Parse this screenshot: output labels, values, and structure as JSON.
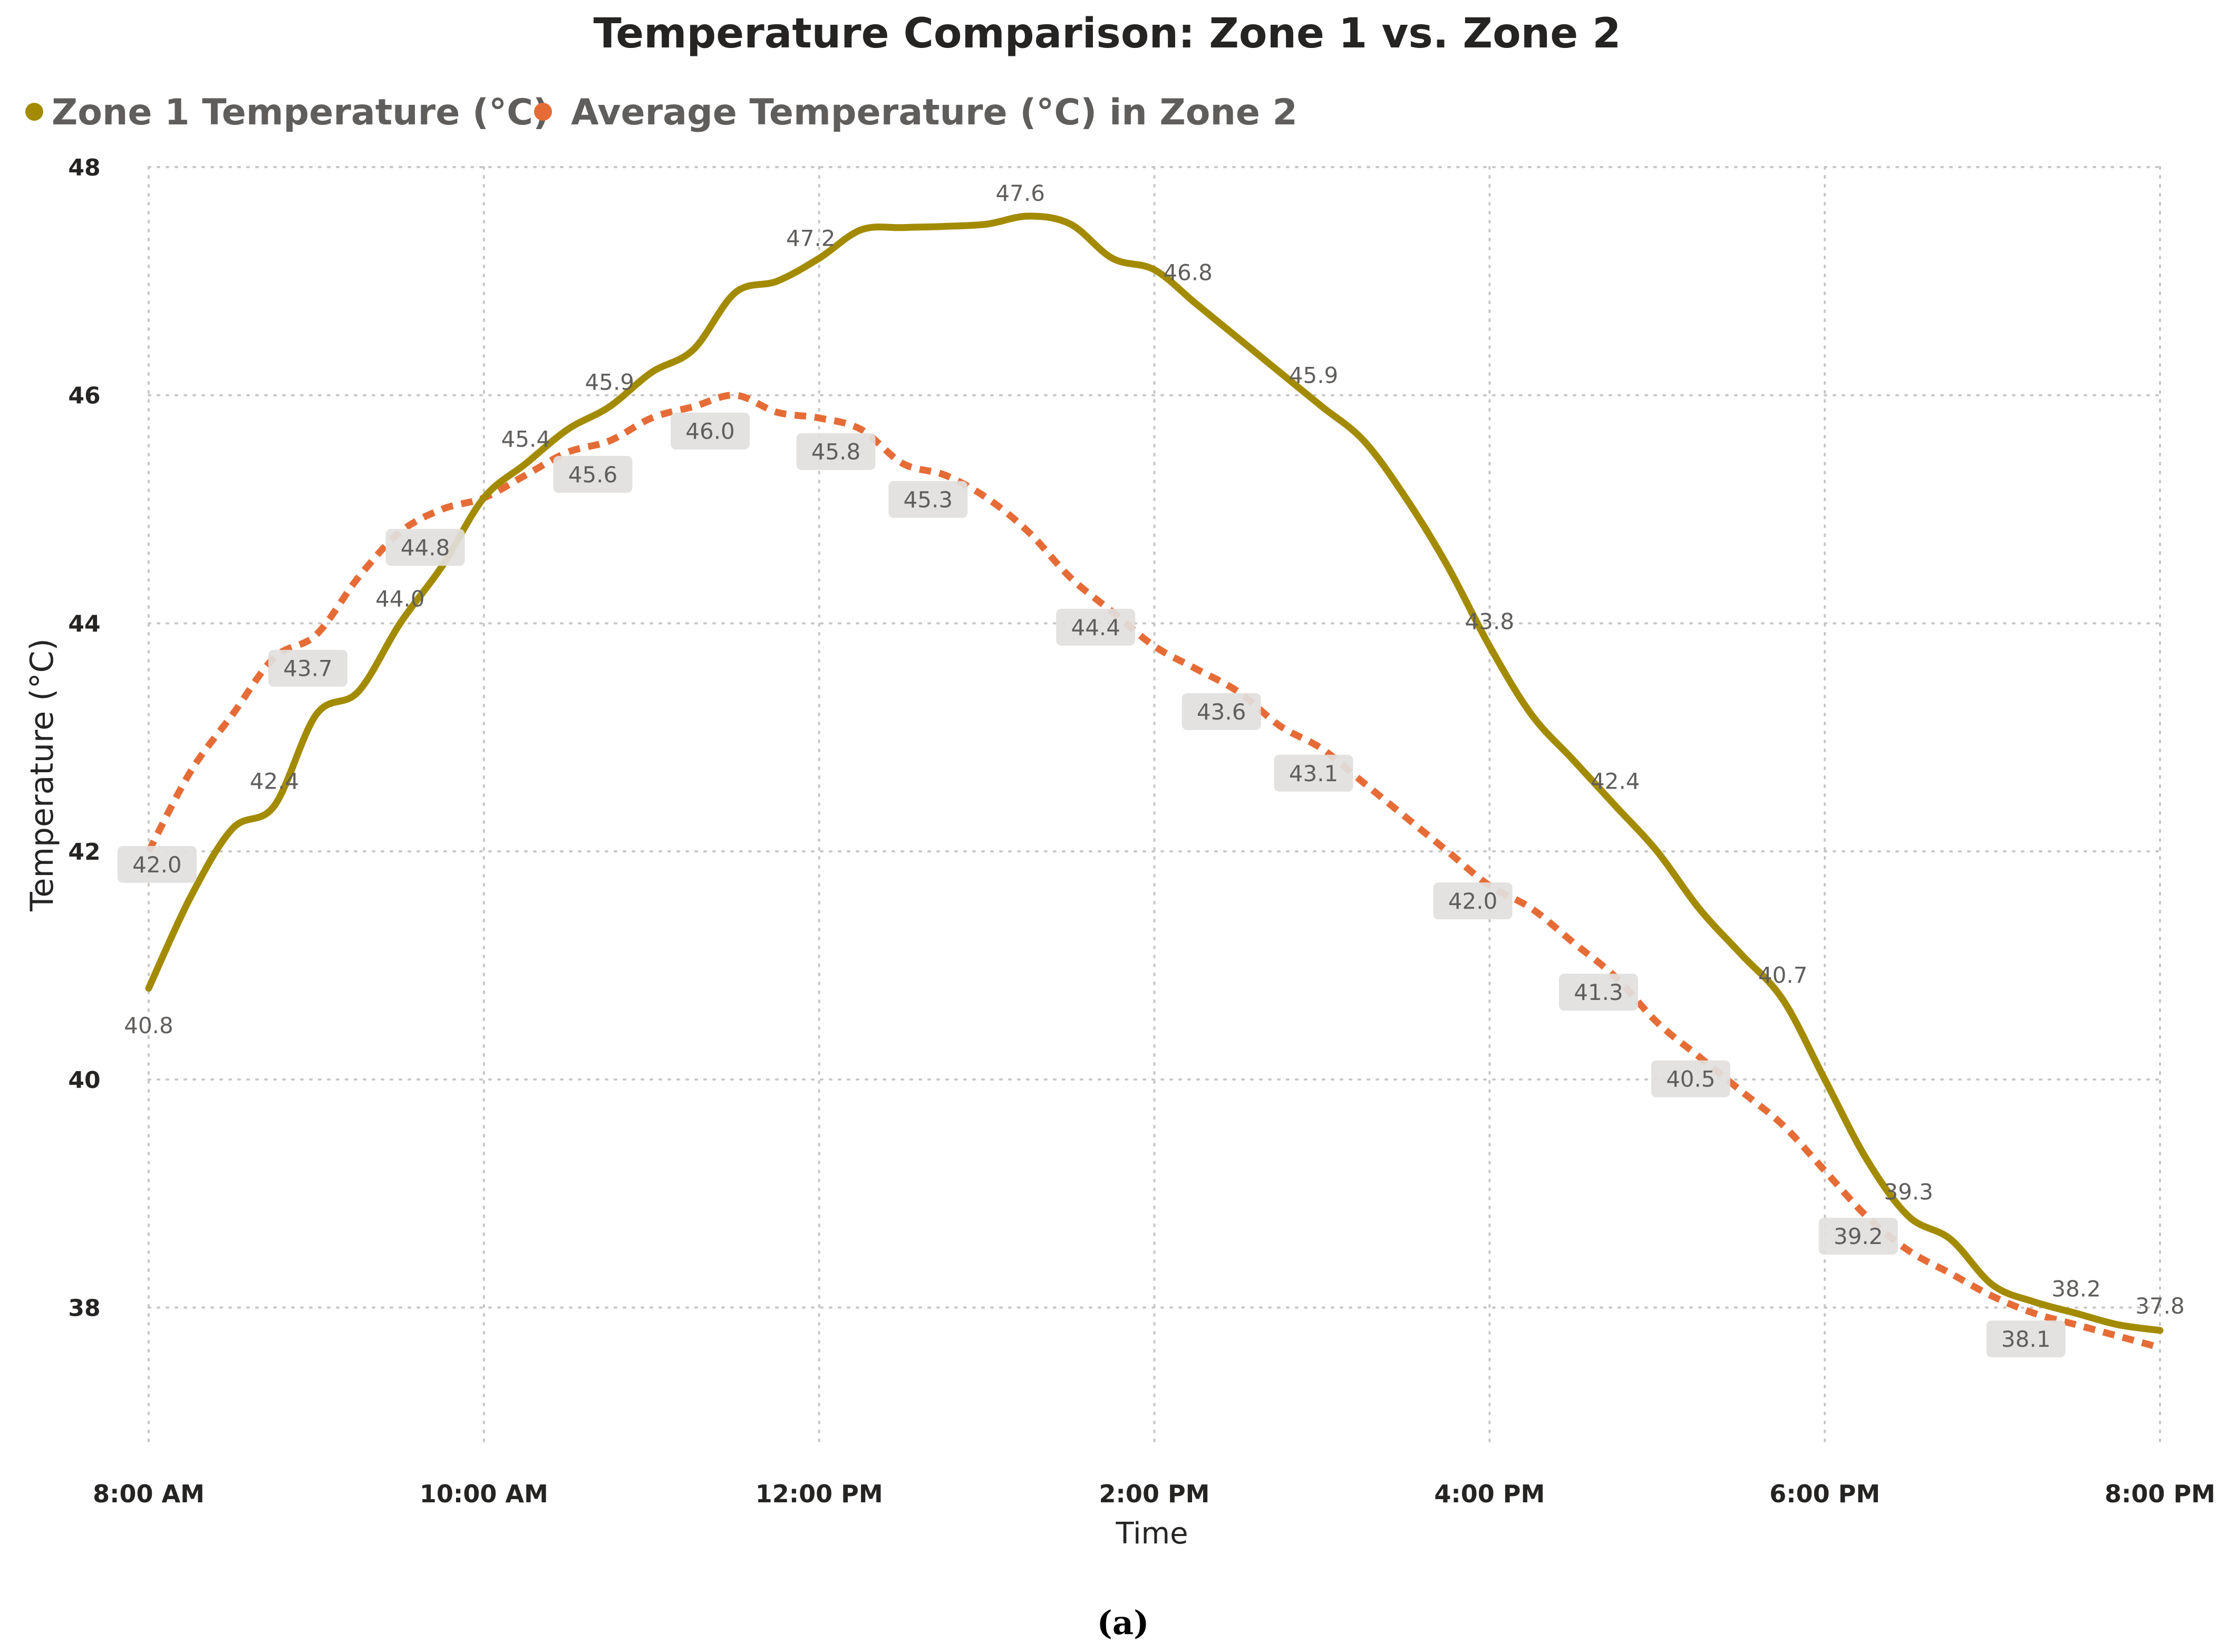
{
  "chart_data": {
    "type": "line",
    "title": "Temperature Comparison: Zone 1 vs. Zone 2",
    "xlabel": "Time",
    "ylabel": "Temperature (°C)",
    "x_ticks": [
      "8:00 AM",
      "10:00 AM",
      "12:00 PM",
      "2:00 PM",
      "4:00 PM",
      "6:00 PM",
      "8:00 PM"
    ],
    "x_range_hours": [
      8,
      20
    ],
    "y_ticks": [
      "38",
      "40",
      "42",
      "44",
      "46",
      "48"
    ],
    "ylim": [
      37,
      48
    ],
    "grid": true,
    "legend_position": "top-left",
    "series": [
      {
        "name": "Zone 1 Temperature (°C)",
        "color": "#a38b00",
        "style": "solid",
        "x": [
          8.0,
          8.25,
          8.5,
          8.75,
          9.0,
          9.25,
          9.5,
          9.75,
          10.0,
          10.25,
          10.5,
          10.75,
          11.0,
          11.25,
          11.5,
          11.75,
          12.0,
          12.25,
          12.5,
          12.75,
          13.0,
          13.25,
          13.5,
          13.75,
          14.0,
          14.25,
          14.5,
          14.75,
          15.0,
          15.25,
          15.5,
          15.75,
          16.0,
          16.25,
          16.5,
          16.75,
          17.0,
          17.25,
          17.5,
          17.75,
          18.0,
          18.25,
          18.5,
          18.75,
          19.0,
          19.25,
          19.5,
          19.75,
          20.0
        ],
        "values": [
          40.8,
          41.6,
          42.2,
          42.4,
          43.2,
          43.4,
          44.0,
          44.5,
          45.1,
          45.4,
          45.7,
          45.9,
          46.2,
          46.4,
          46.9,
          47.0,
          47.2,
          47.45,
          47.47,
          47.48,
          47.5,
          47.57,
          47.5,
          47.2,
          47.1,
          46.8,
          46.5,
          46.2,
          45.9,
          45.6,
          45.1,
          44.5,
          43.8,
          43.2,
          42.8,
          42.4,
          42.0,
          41.5,
          41.1,
          40.7,
          40.0,
          39.3,
          38.8,
          38.6,
          38.2,
          38.05,
          37.95,
          37.85,
          37.8
        ]
      },
      {
        "name": "Average Temperature (°C) in Zone 2",
        "color": "#e66c37",
        "style": "dashed",
        "x": [
          8.0,
          8.25,
          8.5,
          8.75,
          9.0,
          9.25,
          9.5,
          9.75,
          10.0,
          10.25,
          10.5,
          10.75,
          11.0,
          11.25,
          11.5,
          11.75,
          12.0,
          12.25,
          12.5,
          12.75,
          13.0,
          13.25,
          13.5,
          13.75,
          14.0,
          14.25,
          14.5,
          14.75,
          15.0,
          15.25,
          15.5,
          15.75,
          16.0,
          16.25,
          16.5,
          16.75,
          17.0,
          17.25,
          17.5,
          17.75,
          18.0,
          18.25,
          18.5,
          18.75,
          19.0,
          19.25,
          19.5,
          19.75,
          20.0
        ],
        "values": [
          42.0,
          42.7,
          43.2,
          43.7,
          43.9,
          44.4,
          44.8,
          45.0,
          45.1,
          45.3,
          45.5,
          45.6,
          45.8,
          45.9,
          46.0,
          45.85,
          45.8,
          45.7,
          45.4,
          45.3,
          45.1,
          44.8,
          44.4,
          44.1,
          43.8,
          43.6,
          43.4,
          43.1,
          42.9,
          42.6,
          42.3,
          42.0,
          41.7,
          41.5,
          41.2,
          40.9,
          40.5,
          40.2,
          39.9,
          39.6,
          39.2,
          38.8,
          38.5,
          38.3,
          38.1,
          37.95,
          37.85,
          37.75,
          37.65
        ]
      }
    ],
    "data_labels": [
      {
        "series": 0,
        "x": 8.0,
        "text": "40.8"
      },
      {
        "series": 0,
        "x": 8.75,
        "text": "42.4"
      },
      {
        "series": 0,
        "x": 9.5,
        "text": "44.0"
      },
      {
        "series": 0,
        "x": 10.25,
        "text": "45.4"
      },
      {
        "series": 0,
        "x": 10.75,
        "text": "45.9"
      },
      {
        "series": 0,
        "x": 11.95,
        "text": "47.2"
      },
      {
        "series": 0,
        "x": 13.2,
        "text": "47.6"
      },
      {
        "series": 0,
        "x": 14.2,
        "text": "46.8"
      },
      {
        "series": 0,
        "x": 14.95,
        "text": "45.9"
      },
      {
        "series": 0,
        "x": 16.0,
        "text": "43.8"
      },
      {
        "series": 0,
        "x": 16.75,
        "text": "42.4"
      },
      {
        "series": 0,
        "x": 17.75,
        "text": "40.7"
      },
      {
        "series": 0,
        "x": 18.5,
        "text": "39.3"
      },
      {
        "series": 0,
        "x": 19.5,
        "text": "38.2"
      },
      {
        "series": 0,
        "x": 20.0,
        "text": "37.8"
      },
      {
        "series": 1,
        "x": 8.05,
        "text": "42.0"
      },
      {
        "series": 1,
        "x": 8.95,
        "text": "43.7"
      },
      {
        "series": 1,
        "x": 9.65,
        "text": "44.8"
      },
      {
        "series": 1,
        "x": 10.65,
        "text": "45.6"
      },
      {
        "series": 1,
        "x": 11.35,
        "text": "46.0"
      },
      {
        "series": 1,
        "x": 12.1,
        "text": "45.8"
      },
      {
        "series": 1,
        "x": 12.65,
        "text": "45.3"
      },
      {
        "series": 1,
        "x": 13.65,
        "text": "44.4"
      },
      {
        "series": 1,
        "x": 14.4,
        "text": "43.6"
      },
      {
        "series": 1,
        "x": 14.95,
        "text": "43.1"
      },
      {
        "series": 1,
        "x": 15.9,
        "text": "42.0"
      },
      {
        "series": 1,
        "x": 16.65,
        "text": "41.3"
      },
      {
        "series": 1,
        "x": 17.2,
        "text": "40.5"
      },
      {
        "series": 1,
        "x": 18.2,
        "text": "39.2"
      },
      {
        "series": 1,
        "x": 19.2,
        "text": "38.1"
      }
    ]
  },
  "caption": "(a)"
}
